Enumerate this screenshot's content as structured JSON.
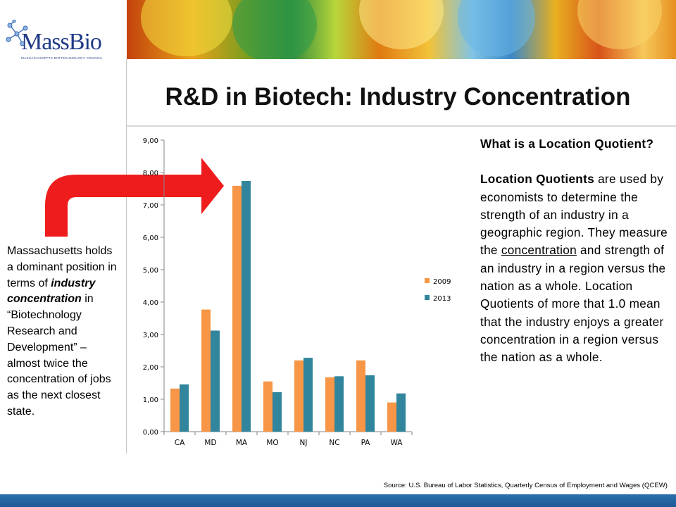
{
  "logo": {
    "name": "MassBio",
    "subtitle": "MASSACHUSETTS BIOTECHNOLOGY COUNCIL"
  },
  "slide": {
    "title": "R&D in Biotech: Industry Concentration",
    "side_text": {
      "part1": "Massachusetts holds a dominant position in terms of ",
      "emphasis": "industry concentration",
      "part2": " in “Biotechnology Research and Development” – almost twice the concentration of jobs as the next closest state."
    },
    "info": {
      "heading": "What is a Location Quotient?",
      "bold_term": "Location Quotients",
      "text1": " are used by economists to determine the strength of an industry in a geographic region. They measure the ",
      "underlined": "concentration",
      "text2": " and strength of an industry in a region versus the nation as a whole. Location Quotients of more that 1.0 mean that the industry enjoys a greater concentration in a region versus the nation as a whole."
    },
    "source": "Source: U.S. Bureau  of Labor Statistics, Quarterly Census of Employment and Wages (QCEW)"
  },
  "colors": {
    "series_2009": "#f79646",
    "series_2013": "#31859c",
    "arrow": "#ee1c1c",
    "axis": "#868686"
  },
  "chart_data": {
    "type": "bar",
    "categories": [
      "CA",
      "MD",
      "MA",
      "MO",
      "NJ",
      "NC",
      "PA",
      "WA"
    ],
    "series": [
      {
        "name": "2009",
        "values": [
          1.33,
          3.77,
          7.59,
          1.55,
          2.2,
          1.68,
          2.2,
          0.9
        ]
      },
      {
        "name": "2013",
        "values": [
          1.46,
          3.12,
          7.74,
          1.22,
          2.28,
          1.71,
          1.74,
          1.18
        ]
      }
    ],
    "yticks": [
      "0,00",
      "1,00",
      "2,00",
      "3,00",
      "4,00",
      "5,00",
      "6,00",
      "7,00",
      "8,00",
      "9,00"
    ],
    "ylim": [
      0,
      9
    ],
    "legend": "right"
  }
}
